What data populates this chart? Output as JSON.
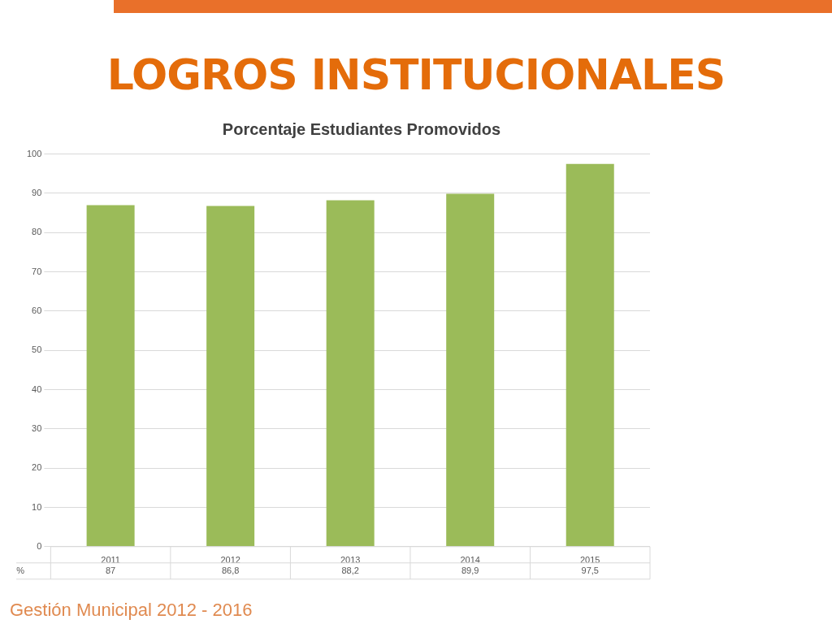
{
  "chart_data": {
    "type": "bar",
    "title": "LOGROS INSTITUCIONALES",
    "subtitle": "Porcentaje Estudiantes Promovidos",
    "categories": [
      "2011",
      "2012",
      "2013",
      "2014",
      "2015"
    ],
    "series": [
      {
        "name": "%",
        "color": "#9bbb59",
        "values": [
          87,
          86.8,
          88.2,
          89.9,
          97.5
        ],
        "value_labels": [
          "87",
          "86,8",
          "88,2",
          "89,9",
          "97,5"
        ]
      }
    ],
    "ylim": [
      0,
      100
    ],
    "yticks": [
      0,
      10,
      20,
      30,
      40,
      50,
      60,
      70,
      80,
      90,
      100
    ],
    "grid": "y",
    "legend": "bottom",
    "annotations": [
      "Gestión Municipal 2012 - 2016"
    ]
  }
}
